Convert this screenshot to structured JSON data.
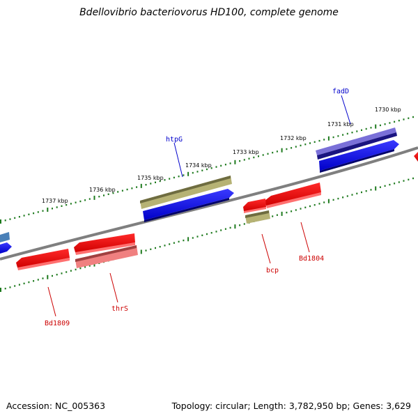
{
  "title": "Bdellovibrio bacteriovorus HD100, complete genome",
  "footer": {
    "accession": "Accession: NC_005363",
    "summary": "Topology: circular; Length: 3,782,950 bp; Genes: 3,629"
  },
  "colors": {
    "backbone": "#808080",
    "forward_cds": "#0000ee",
    "reverse_cds": "#ee0000",
    "highlight_gene": "#b8b678",
    "tick": "#1e7a1e",
    "forward_label": "#0000cc",
    "reverse_label": "#cc0000"
  },
  "kbp_markers": [
    "1730 kbp",
    "1731 kbp",
    "1732 kbp",
    "1733 kbp",
    "1734 kbp",
    "1735 kbp",
    "1736 kbp",
    "1737 kbp"
  ],
  "gene_labels": {
    "fadD": "fadD",
    "htpG": "htpG",
    "bcp": "bcp",
    "Bd1804": "Bd1804",
    "thrS": "thrS",
    "Bd1809": "Bd1809"
  }
}
